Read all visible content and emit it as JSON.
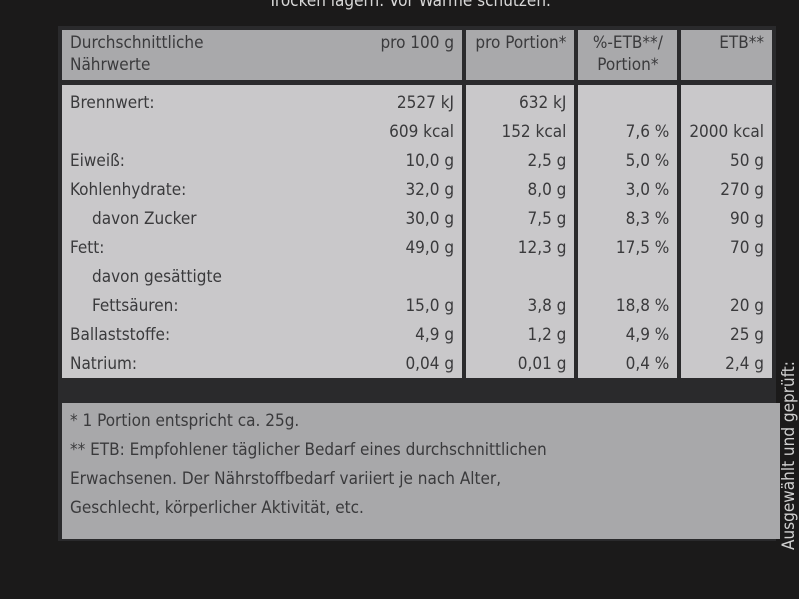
{
  "top_text": "Trocken lagern. Vor Wärme schützen.",
  "side_text": "Ausgewählt und geprüft:",
  "table": {
    "headers": [
      "Durchschnittliche Nährwerte",
      "pro 100 g",
      "pro Portion*",
      "%-ETB**/ Portion*",
      "ETB**"
    ],
    "rows": [
      {
        "label": "Brennwert:",
        "per100": "2527 kJ",
        "portion": "632 kJ",
        "pct": "",
        "etb": ""
      },
      {
        "label": "",
        "per100": "609 kcal",
        "portion": "152 kcal",
        "pct": "7,6 %",
        "etb": "2000 kcal"
      },
      {
        "label": "Eiweiß:",
        "per100": "10,0 g",
        "portion": "2,5 g",
        "pct": "5,0 %",
        "etb": "50 g"
      },
      {
        "label": "Kohlenhydrate:",
        "per100": "32,0 g",
        "portion": "8,0 g",
        "pct": "3,0 %",
        "etb": "270 g"
      },
      {
        "label": "davon Zucker",
        "per100": "30,0 g",
        "portion": "7,5 g",
        "pct": "8,3 %",
        "etb": "90 g",
        "indent": true
      },
      {
        "label": "Fett:",
        "per100": "49,0 g",
        "portion": "12,3 g",
        "pct": "17,5 %",
        "etb": "70 g"
      },
      {
        "label": "davon gesättigte",
        "per100": "",
        "portion": "",
        "pct": "",
        "etb": "",
        "indent": true
      },
      {
        "label": "Fettsäuren:",
        "per100": "15,0 g",
        "portion": "3,8 g",
        "pct": "18,8 %",
        "etb": "20 g",
        "indent": true
      },
      {
        "label": "Ballaststoffe:",
        "per100": "4,9 g",
        "portion": "1,2 g",
        "pct": "4,9 %",
        "etb": "25 g"
      },
      {
        "label": "Natrium:",
        "per100": "0,04 g",
        "portion": "0,01 g",
        "pct": "0,4 %",
        "etb": "2,4 g"
      }
    ]
  },
  "footnotes": [
    "* 1 Portion entspricht ca. 25g.",
    "** ETB: Empfohlener täglicher Bedarf eines durchschnittlichen",
    "Erwachsenen. Der Nährstoffbedarf variiert je nach Alter,",
    "Geschlecht, körperlicher Aktivität, etc."
  ]
}
